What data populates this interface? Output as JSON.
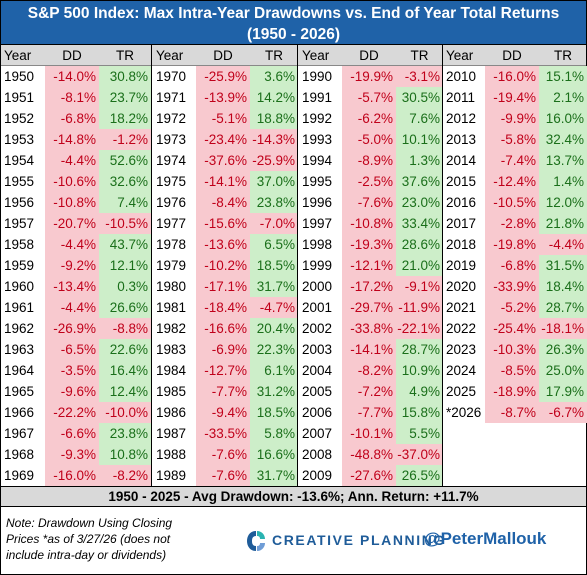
{
  "title": {
    "line1": "S&P 500 Index: Max Intra-Year Drawdowns vs. End of Year Total Returns",
    "line2": "(1950 - 2026)"
  },
  "headers": {
    "year": "Year",
    "dd": "DD",
    "tr": "TR"
  },
  "colors": {
    "header_bg": "#1f62a8",
    "negative_bg": "#f8c9cf",
    "negative_text": "#c0001a",
    "positive_bg": "#cdeec9",
    "positive_text": "#1a6f1a"
  },
  "chart_data": {
    "type": "table",
    "columns": [
      "Year",
      "DD",
      "TR"
    ],
    "rows": [
      [
        "1950",
        "-14.0%",
        "30.8%"
      ],
      [
        "1951",
        "-8.1%",
        "23.7%"
      ],
      [
        "1952",
        "-6.8%",
        "18.2%"
      ],
      [
        "1953",
        "-14.8%",
        "-1.2%"
      ],
      [
        "1954",
        "-4.4%",
        "52.6%"
      ],
      [
        "1955",
        "-10.6%",
        "32.6%"
      ],
      [
        "1956",
        "-10.8%",
        "7.4%"
      ],
      [
        "1957",
        "-20.7%",
        "-10.5%"
      ],
      [
        "1958",
        "-4.4%",
        "43.7%"
      ],
      [
        "1959",
        "-9.2%",
        "12.1%"
      ],
      [
        "1960",
        "-13.4%",
        "0.3%"
      ],
      [
        "1961",
        "-4.4%",
        "26.6%"
      ],
      [
        "1962",
        "-26.9%",
        "-8.8%"
      ],
      [
        "1963",
        "-6.5%",
        "22.6%"
      ],
      [
        "1964",
        "-3.5%",
        "16.4%"
      ],
      [
        "1965",
        "-9.6%",
        "12.4%"
      ],
      [
        "1966",
        "-22.2%",
        "-10.0%"
      ],
      [
        "1967",
        "-6.6%",
        "23.8%"
      ],
      [
        "1968",
        "-9.3%",
        "10.8%"
      ],
      [
        "1969",
        "-16.0%",
        "-8.2%"
      ],
      [
        "1970",
        "-25.9%",
        "3.6%"
      ],
      [
        "1971",
        "-13.9%",
        "14.2%"
      ],
      [
        "1972",
        "-5.1%",
        "18.8%"
      ],
      [
        "1973",
        "-23.4%",
        "-14.3%"
      ],
      [
        "1974",
        "-37.6%",
        "-25.9%"
      ],
      [
        "1975",
        "-14.1%",
        "37.0%"
      ],
      [
        "1976",
        "-8.4%",
        "23.8%"
      ],
      [
        "1977",
        "-15.6%",
        "-7.0%"
      ],
      [
        "1978",
        "-13.6%",
        "6.5%"
      ],
      [
        "1979",
        "-10.2%",
        "18.5%"
      ],
      [
        "1980",
        "-17.1%",
        "31.7%"
      ],
      [
        "1981",
        "-18.4%",
        "-4.7%"
      ],
      [
        "1982",
        "-16.6%",
        "20.4%"
      ],
      [
        "1983",
        "-6.9%",
        "22.3%"
      ],
      [
        "1984",
        "-12.7%",
        "6.1%"
      ],
      [
        "1985",
        "-7.7%",
        "31.2%"
      ],
      [
        "1986",
        "-9.4%",
        "18.5%"
      ],
      [
        "1987",
        "-33.5%",
        "5.8%"
      ],
      [
        "1988",
        "-7.6%",
        "16.6%"
      ],
      [
        "1989",
        "-7.6%",
        "31.7%"
      ],
      [
        "1990",
        "-19.9%",
        "-3.1%"
      ],
      [
        "1991",
        "-5.7%",
        "30.5%"
      ],
      [
        "1992",
        "-6.2%",
        "7.6%"
      ],
      [
        "1993",
        "-5.0%",
        "10.1%"
      ],
      [
        "1994",
        "-8.9%",
        "1.3%"
      ],
      [
        "1995",
        "-2.5%",
        "37.6%"
      ],
      [
        "1996",
        "-7.6%",
        "23.0%"
      ],
      [
        "1997",
        "-10.8%",
        "33.4%"
      ],
      [
        "1998",
        "-19.3%",
        "28.6%"
      ],
      [
        "1999",
        "-12.1%",
        "21.0%"
      ],
      [
        "2000",
        "-17.2%",
        "-9.1%"
      ],
      [
        "2001",
        "-29.7%",
        "-11.9%"
      ],
      [
        "2002",
        "-33.8%",
        "-22.1%"
      ],
      [
        "2003",
        "-14.1%",
        "28.7%"
      ],
      [
        "2004",
        "-8.2%",
        "10.9%"
      ],
      [
        "2005",
        "-7.2%",
        "4.9%"
      ],
      [
        "2006",
        "-7.7%",
        "15.8%"
      ],
      [
        "2007",
        "-10.1%",
        "5.5%"
      ],
      [
        "2008",
        "-48.8%",
        "-37.0%"
      ],
      [
        "2009",
        "-27.6%",
        "26.5%"
      ],
      [
        "2010",
        "-16.0%",
        "15.1%"
      ],
      [
        "2011",
        "-19.4%",
        "2.1%"
      ],
      [
        "2012",
        "-9.9%",
        "16.0%"
      ],
      [
        "2013",
        "-5.8%",
        "32.4%"
      ],
      [
        "2014",
        "-7.4%",
        "13.7%"
      ],
      [
        "2015",
        "-12.4%",
        "1.4%"
      ],
      [
        "2016",
        "-10.5%",
        "12.0%"
      ],
      [
        "2017",
        "-2.8%",
        "21.8%"
      ],
      [
        "2018",
        "-19.8%",
        "-4.4%"
      ],
      [
        "2019",
        "-6.8%",
        "31.5%"
      ],
      [
        "2020",
        "-33.9%",
        "18.4%"
      ],
      [
        "2021",
        "-5.2%",
        "28.7%"
      ],
      [
        "2022",
        "-25.4%",
        "-18.1%"
      ],
      [
        "2023",
        "-10.3%",
        "26.3%"
      ],
      [
        "2024",
        "-8.5%",
        "25.0%"
      ],
      [
        "2025",
        "-18.9%",
        "17.9%"
      ],
      [
        "*2026",
        "-8.7%",
        "-6.7%"
      ]
    ]
  },
  "summary": "1950 - 2025 - Avg Drawdown: -13.6%; Ann. Return: +11.7%",
  "footer": {
    "note": "Note: Drawdown Using Closing Prices *as of 3/27/26 (does not include intra-day or dividends)",
    "brand": "CREATIVE PLANNING",
    "handle": "@PeterMallouk"
  }
}
